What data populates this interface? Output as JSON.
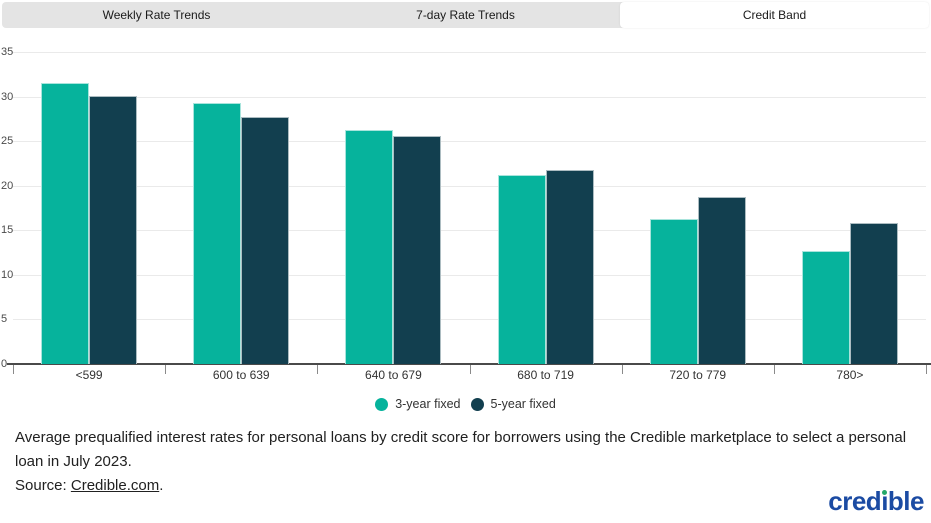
{
  "tabs": {
    "items": [
      {
        "label": "Weekly Rate Trends",
        "active": false
      },
      {
        "label": "7-day Rate Trends",
        "active": false
      },
      {
        "label": "Credit Band",
        "active": true
      }
    ]
  },
  "chart_data": {
    "type": "bar",
    "title": "",
    "xlabel": "",
    "ylabel": "",
    "categories": [
      "<599",
      "600 to 639",
      "640 to 679",
      "680 to 719",
      "720 to 779",
      "780>"
    ],
    "series": [
      {
        "name": "3-year fixed",
        "color": "#06B39C",
        "values": [
          31.5,
          29.3,
          26.2,
          21.2,
          16.3,
          12.7
        ]
      },
      {
        "name": "5-year fixed",
        "color": "#123F4F",
        "values": [
          30.1,
          27.7,
          25.6,
          21.8,
          18.7,
          15.8
        ]
      }
    ],
    "ylim": [
      0,
      35
    ],
    "yticks": [
      0,
      5,
      10,
      15,
      20,
      25,
      30,
      35
    ],
    "grid": true,
    "legend_position": "bottom"
  },
  "caption": {
    "text": "Average prequalified interest rates for personal loans by credit score for borrowers using the Credible marketplace to select a personal loan in July 2023.",
    "source_prefix": "Source: ",
    "source_link": "Credible.com",
    "source_suffix": "."
  },
  "logo": {
    "pre": "cred",
    "i": "ı",
    "post": "ble",
    "blue": "#1B4BA3",
    "green": "#25A969"
  }
}
